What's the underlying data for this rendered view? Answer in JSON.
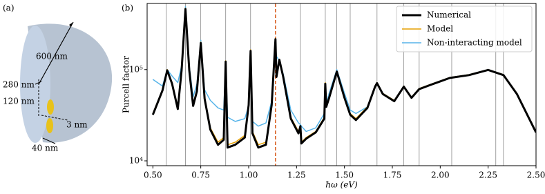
{
  "diagram": {
    "label": "(a)",
    "annotations": [
      "600 nm",
      "280 nm",
      "120 nm",
      "3 nm",
      "40 nm"
    ]
  },
  "chart_data": {
    "type": "line",
    "panel_label": "(b)",
    "xlabel": "ħω (eV)",
    "ylabel": "Purcell factor",
    "xlim": [
      0.47,
      2.5
    ],
    "ylim": [
      8850,
      530000
    ],
    "yscale": "log",
    "legend": "upper right",
    "xticks": [
      {
        "value": 0.5,
        "label": "0.50"
      },
      0.75,
      {
        "value": 1.0,
        "label": "1.00"
      },
      1.25,
      {
        "value": 1.5,
        "label": "1.50"
      },
      1.75,
      {
        "value": 2.0,
        "label": "2.00"
      },
      2.25,
      {
        "value": 2.5,
        "label": "2.50"
      }
    ],
    "yticks": [
      {
        "value": 10000,
        "label": "10⁴"
      },
      {
        "value": 100000,
        "label": "10⁵"
      }
    ],
    "mode_lines": {
      "color": "#888888",
      "values": [
        0.57,
        0.67,
        0.75,
        0.88,
        1.01,
        1.27,
        1.4,
        1.46,
        1.53,
        1.67,
        1.81,
        1.89,
        2.06,
        2.29,
        2.33
      ]
    },
    "marked_line": {
      "color": "#d9652b",
      "value": 1.14
    },
    "x": [
      0.5,
      0.55,
      0.575,
      0.6,
      0.63,
      0.65,
      0.67,
      0.69,
      0.71,
      0.73,
      0.75,
      0.77,
      0.8,
      0.84,
      0.87,
      0.88,
      0.89,
      0.93,
      0.98,
      1.0,
      1.01,
      1.02,
      1.05,
      1.09,
      1.12,
      1.14,
      1.145,
      1.16,
      1.18,
      1.22,
      1.26,
      1.27,
      1.275,
      1.3,
      1.35,
      1.395,
      1.4,
      1.405,
      1.42,
      1.46,
      1.5,
      1.53,
      1.56,
      1.62,
      1.66,
      1.67,
      1.7,
      1.76,
      1.81,
      1.85,
      1.89,
      1.95,
      2.05,
      2.15,
      2.25,
      2.33,
      2.4,
      2.5
    ],
    "series": [
      {
        "name": "Numerical",
        "color": "#000000",
        "values": [
          32000,
          59000,
          98000,
          70000,
          37000,
          98000,
          460000,
          98000,
          40000,
          58000,
          195000,
          48000,
          22000,
          15000,
          17000,
          122000,
          14000,
          15000,
          18000,
          41000,
          160000,
          20000,
          14000,
          15000,
          41000,
          215000,
          83000,
          128000,
          84000,
          29000,
          20000,
          24000,
          15500,
          17500,
          20500,
          29000,
          70000,
          39000,
          49000,
          95000,
          49000,
          32000,
          28000,
          38000,
          65000,
          71000,
          54000,
          45000,
          65000,
          49000,
          61000,
          68000,
          81000,
          87000,
          99000,
          87000,
          54000,
          20500
        ]
      },
      {
        "name": "Model",
        "color": "#e69f00",
        "values": [
          33000,
          60000,
          100000,
          72000,
          39000,
          100000,
          470000,
          100000,
          42000,
          60000,
          200000,
          50000,
          23000,
          16000,
          18000,
          125000,
          15000,
          16000,
          19000,
          42000,
          165000,
          21000,
          15000,
          16000,
          42000,
          220000,
          85000,
          130000,
          85000,
          30000,
          21000,
          24000,
          16000,
          18000,
          21000,
          30000,
          72000,
          40000,
          50000,
          96000,
          50000,
          33000,
          29000,
          39000,
          66000,
          72000,
          55000,
          46000,
          66000,
          50000,
          62000,
          69000,
          82000,
          88000,
          100000,
          88000,
          55000,
          21000
        ]
      },
      {
        "name": "Non-interacting model",
        "color": "#56b4e9",
        "values": [
          78000,
          66000,
          100000,
          85000,
          72000,
          110000,
          490000,
          110000,
          50000,
          70000,
          210000,
          60000,
          46000,
          38000,
          36000,
          125000,
          30000,
          27000,
          29000,
          40000,
          165000,
          27000,
          24000,
          26000,
          45000,
          200000,
          140000,
          125000,
          90000,
          36000,
          26000,
          25000,
          24000,
          21000,
          23000,
          33000,
          40000,
          42000,
          55000,
          100000,
          55000,
          36000,
          33000,
          39000,
          66000,
          70000,
          55000,
          46000,
          66000,
          50000,
          62000,
          69000,
          82000,
          88000,
          100000,
          88000,
          55000,
          21000
        ]
      }
    ]
  }
}
